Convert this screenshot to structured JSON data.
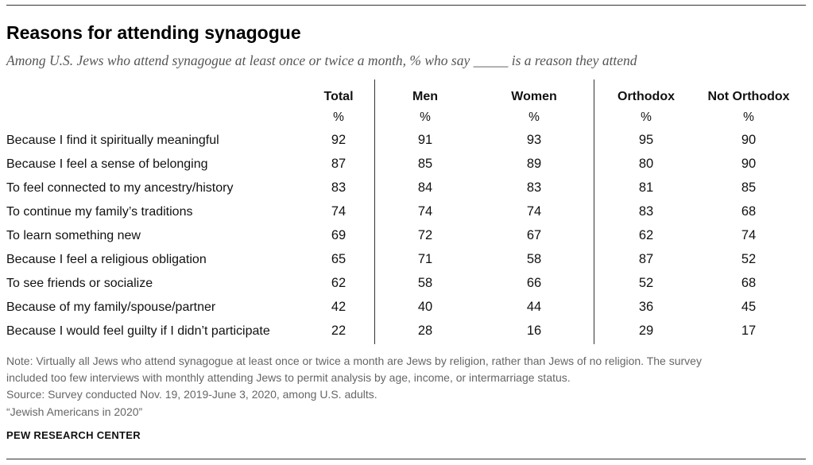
{
  "title": "Reasons for attending synagogue",
  "subtitle": "Among U.S. Jews who attend synagogue at least once or twice a month, % who say _____ is a reason they attend",
  "chart_data": {
    "type": "table",
    "columns": [
      "Total",
      "Men",
      "Women",
      "Orthodox",
      "Not Orthodox"
    ],
    "unit_row": [
      "%",
      "%",
      "%",
      "%",
      "%"
    ],
    "rows": [
      {
        "label": "Because I find it spiritually meaningful",
        "values": [
          92,
          91,
          93,
          95,
          90
        ]
      },
      {
        "label": "Because I feel a sense of belonging",
        "values": [
          87,
          85,
          89,
          80,
          90
        ]
      },
      {
        "label": "To feel connected to my ancestry/history",
        "values": [
          83,
          84,
          83,
          81,
          85
        ]
      },
      {
        "label": "To continue my family’s traditions",
        "values": [
          74,
          74,
          74,
          83,
          68
        ]
      },
      {
        "label": "To learn something new",
        "values": [
          69,
          72,
          67,
          62,
          74
        ]
      },
      {
        "label": "Because I feel a religious obligation",
        "values": [
          65,
          71,
          58,
          87,
          52
        ]
      },
      {
        "label": "To see friends or socialize",
        "values": [
          62,
          58,
          66,
          52,
          68
        ]
      },
      {
        "label": "Because of my family/spouse/partner",
        "values": [
          42,
          40,
          44,
          36,
          45
        ]
      },
      {
        "label": "Because I would feel guilty if I didn’t participate",
        "values": [
          22,
          28,
          16,
          29,
          17
        ]
      }
    ]
  },
  "notes": {
    "note_line1": "Note: Virtually all Jews who attend synagogue at least once or twice a month are Jews by religion, rather than Jews of no religion. The survey",
    "note_line2": "included too few interviews with monthly attending Jews to permit analysis by age, income, or intermarriage status.",
    "source": "Source: Survey conducted Nov. 19, 2019-June 3, 2020, among U.S. adults.",
    "report": "“Jewish Americans in 2020”"
  },
  "organization": "PEW RESEARCH CENTER"
}
